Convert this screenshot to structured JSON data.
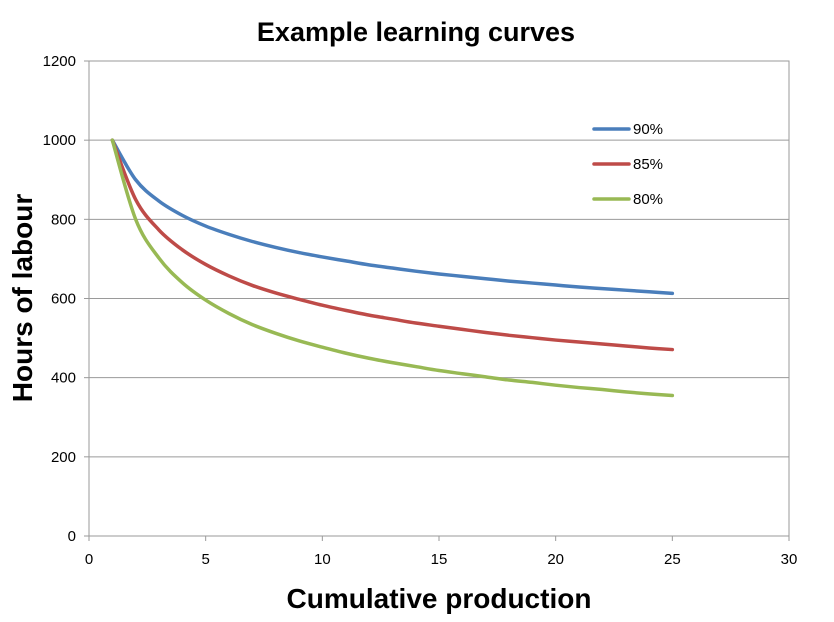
{
  "chart_data": {
    "type": "line",
    "title": "Example learning curves",
    "xlabel": "Cumulative production",
    "ylabel": "Hours of labour",
    "xlim": [
      0,
      30
    ],
    "ylim": [
      0,
      1200
    ],
    "xticks": [
      0,
      5,
      10,
      15,
      20,
      25,
      30
    ],
    "yticks": [
      0,
      200,
      400,
      600,
      800,
      1000,
      1200
    ],
    "grid": "horizontal",
    "legend_position": "top-right",
    "x": [
      1,
      2,
      3,
      4,
      5,
      6,
      7,
      8,
      9,
      10,
      11,
      12,
      13,
      14,
      15,
      16,
      17,
      18,
      19,
      20,
      21,
      22,
      23,
      24,
      25
    ],
    "series": [
      {
        "name": "90%",
        "color": "#4a7ebb",
        "values": [
          1000,
          900,
          846,
          810,
          783,
          762,
          744,
          729,
          716,
          705,
          695,
          685,
          677,
          669,
          662,
          656,
          650,
          644,
          639,
          634,
          629,
          625,
          621,
          617,
          613
        ]
      },
      {
        "name": "85%",
        "color": "#be4b48",
        "values": [
          1000,
          850,
          773,
          723,
          686,
          657,
          633,
          614,
          598,
          583,
          570,
          558,
          548,
          538,
          530,
          522,
          514,
          507,
          501,
          495,
          490,
          485,
          480,
          475,
          471
        ]
      },
      {
        "name": "80%",
        "color": "#98b954",
        "values": [
          1000,
          800,
          702,
          640,
          596,
          562,
          534,
          512,
          493,
          477,
          462,
          449,
          438,
          428,
          418,
          410,
          402,
          394,
          388,
          381,
          375,
          370,
          364,
          359,
          355
        ]
      }
    ]
  }
}
